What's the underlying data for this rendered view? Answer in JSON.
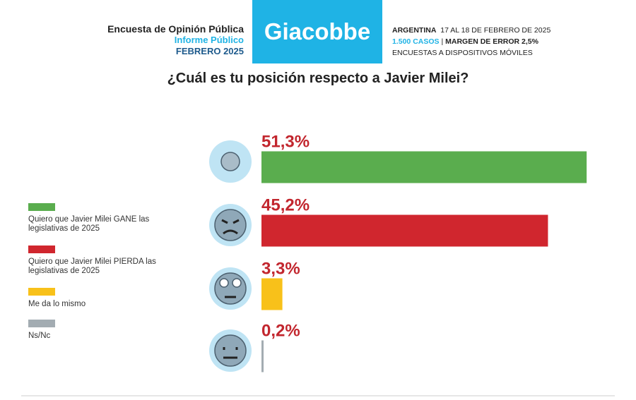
{
  "header": {
    "survey": "Encuesta de Opinión Pública",
    "report": "Informe Público",
    "period": "FEBRERO 2025",
    "brand": "Giacobbe",
    "country": "ARGENTINA",
    "dates": "17 AL 18 DE FEBRERO DE 2025",
    "cases": "1.500 CASOS",
    "separator": "|",
    "margin": "MARGEN DE ERROR 2,5%",
    "method": "ENCUESTAS A DISPOSITIVOS MÓVILES"
  },
  "chart_data": {
    "type": "bar",
    "title": "¿Cuál es tu posición respecto a Javier Milei?",
    "categories": [
      "Quiero que Javier Milei GANE las legislativas de 2025",
      "Quiero que Javier Milei PIERDA las legislativas de 2025",
      "Me da lo mismo",
      "Ns/Nc"
    ],
    "values": [
      51.3,
      45.2,
      3.3,
      0.2
    ],
    "value_labels": [
      "51,3%",
      "45,2%",
      "3,3%",
      "0,2%"
    ],
    "colors": [
      "#5aad4e",
      "#d0262e",
      "#f8c11a",
      "#a3acb2"
    ]
  }
}
